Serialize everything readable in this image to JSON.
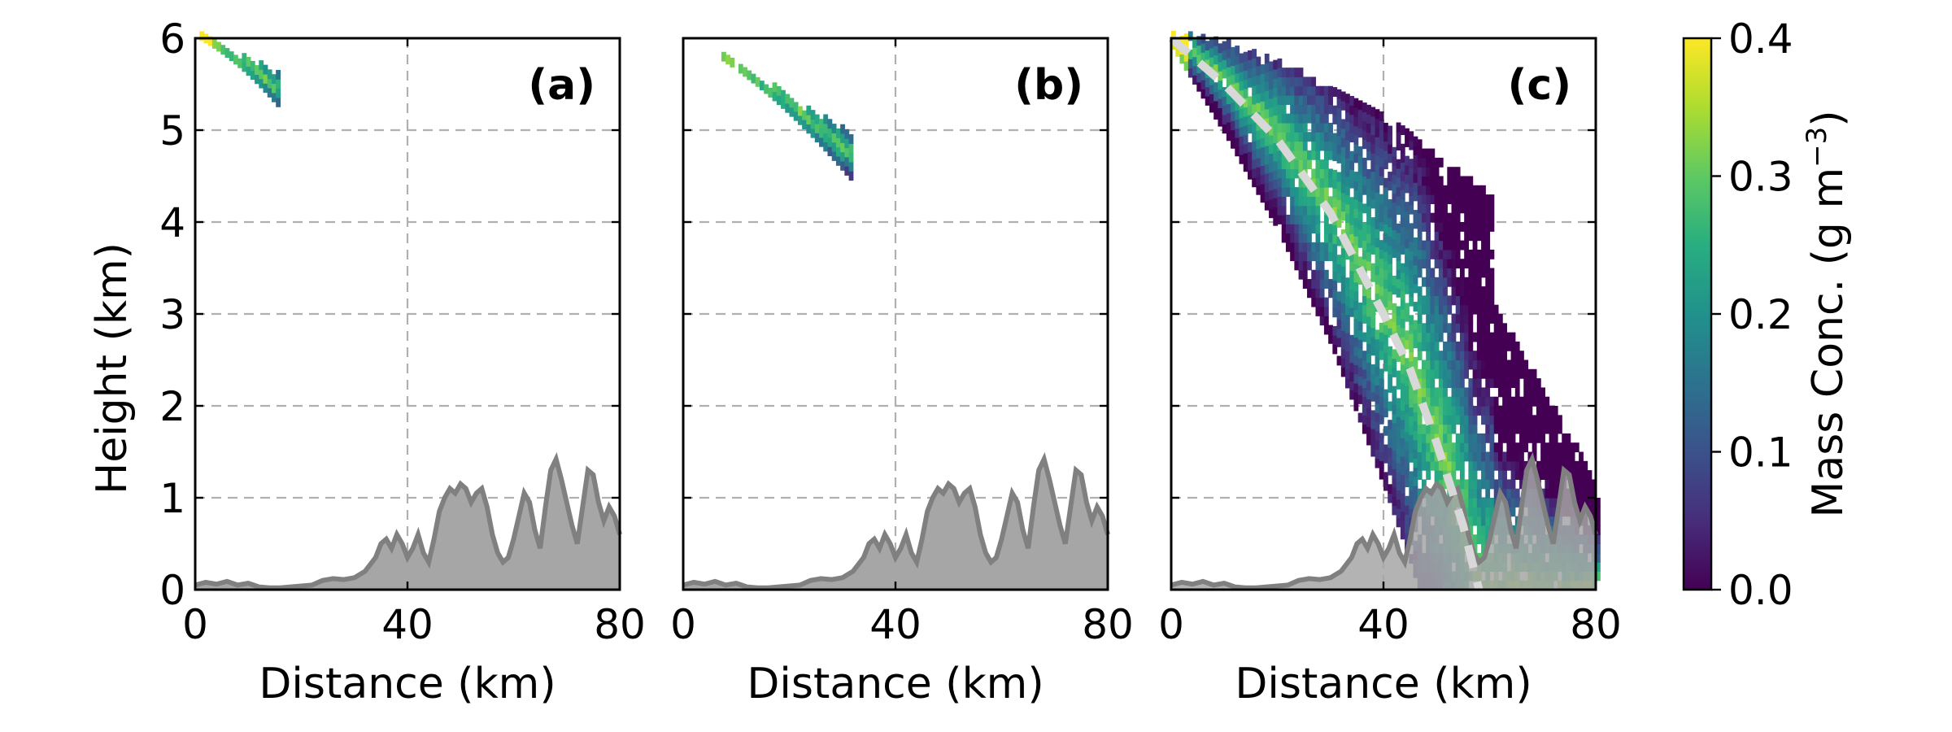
{
  "chart_data": {
    "type": "heatmap",
    "panels": [
      {
        "id": "a",
        "label": "(a)"
      },
      {
        "id": "b",
        "label": "(b)"
      },
      {
        "id": "c",
        "label": "(c)"
      }
    ],
    "xlabel": "Distance (km)",
    "ylabel": "Height (km)",
    "xlim": [
      0,
      80
    ],
    "ylim": [
      0,
      6
    ],
    "xticks": [
      "0",
      "40",
      "80"
    ],
    "yticks": [
      "0",
      "1",
      "2",
      "3",
      "4",
      "5",
      "6"
    ],
    "grid": true,
    "colorbar": {
      "label": "Mass Conc.  (g m",
      "label_superscript": "−3",
      "label_close": ")",
      "ticks": [
        "0.0",
        "0.1",
        "0.2",
        "0.3",
        "0.4"
      ],
      "range": [
        0.0,
        0.4
      ],
      "colormap": "viridis"
    },
    "plume_extent": {
      "a": {
        "max_distance_km": 16,
        "min_height_km": 5.2
      },
      "b": {
        "max_distance_km": 32,
        "min_height_km": 4.4
      },
      "c": {
        "max_distance_km": 80,
        "min_height_km": 0.0
      }
    },
    "plume_centerline_c": {
      "distance_km": [
        0,
        10,
        20,
        30,
        40,
        45,
        50,
        55,
        58
      ],
      "height_km": [
        6.0,
        5.5,
        4.9,
        4.1,
        3.0,
        2.4,
        1.6,
        0.7,
        0.0
      ]
    },
    "terrain": {
      "distance_km": [
        0,
        2,
        4,
        6,
        8,
        10,
        12,
        14,
        16,
        18,
        20,
        22,
        24,
        26,
        28,
        30,
        32,
        34,
        35,
        36,
        37,
        38,
        39,
        40,
        41,
        42,
        43,
        44,
        45,
        46,
        47,
        48,
        49,
        50,
        51,
        52,
        53,
        54,
        55,
        56,
        57,
        58,
        59,
        60,
        61,
        62,
        63,
        64,
        65,
        66,
        67,
        68,
        69,
        70,
        71,
        72,
        73,
        74,
        75,
        76,
        77,
        78,
        79,
        80
      ],
      "height_km": [
        0.05,
        0.08,
        0.06,
        0.09,
        0.05,
        0.07,
        0.03,
        0.02,
        0.02,
        0.03,
        0.04,
        0.05,
        0.1,
        0.12,
        0.11,
        0.13,
        0.2,
        0.35,
        0.5,
        0.55,
        0.45,
        0.6,
        0.5,
        0.35,
        0.45,
        0.6,
        0.4,
        0.3,
        0.55,
        0.85,
        1.0,
        1.1,
        1.05,
        1.15,
        1.1,
        0.95,
        1.05,
        1.1,
        0.9,
        0.6,
        0.4,
        0.3,
        0.35,
        0.55,
        0.8,
        1.05,
        0.95,
        0.65,
        0.45,
        0.9,
        1.3,
        1.42,
        1.2,
        0.95,
        0.7,
        0.5,
        0.9,
        1.3,
        1.25,
        0.95,
        0.75,
        0.9,
        0.8,
        0.6
      ]
    }
  }
}
